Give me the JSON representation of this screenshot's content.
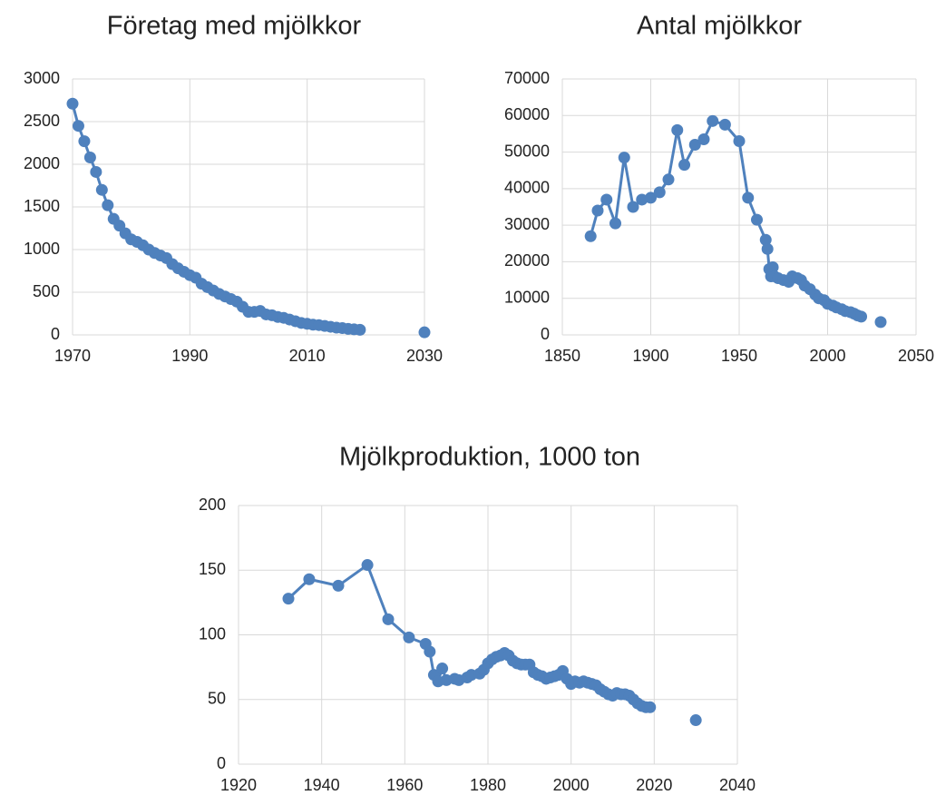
{
  "chart_data": [
    {
      "type": "line",
      "title": "Företag med mjölkkor",
      "xlim": [
        1970,
        2030
      ],
      "xticks": [
        1970,
        1990,
        2010,
        2030
      ],
      "ylim": [
        0,
        3000
      ],
      "yticks": [
        0,
        500,
        1000,
        1500,
        2000,
        2500,
        3000
      ],
      "grid": true,
      "series": [
        {
          "color": "#4f81bd",
          "x": [
            1970,
            1971,
            1972,
            1973,
            1974,
            1975,
            1976,
            1977,
            1978,
            1979,
            1980,
            1981,
            1982,
            1983,
            1984,
            1985,
            1986,
            1987,
            1988,
            1989,
            1990,
            1991,
            1992,
            1993,
            1994,
            1995,
            1996,
            1997,
            1998,
            1999,
            2000,
            2001,
            2002,
            2003,
            2004,
            2005,
            2006,
            2007,
            2008,
            2009,
            2010,
            2011,
            2012,
            2013,
            2014,
            2015,
            2016,
            2017,
            2018,
            2019
          ],
          "values": [
            2710,
            2450,
            2270,
            2080,
            1910,
            1700,
            1520,
            1360,
            1280,
            1190,
            1120,
            1090,
            1050,
            1000,
            960,
            930,
            900,
            830,
            780,
            740,
            700,
            670,
            600,
            560,
            520,
            480,
            450,
            420,
            390,
            330,
            270,
            270,
            280,
            240,
            230,
            210,
            200,
            180,
            160,
            140,
            130,
            120,
            115,
            105,
            95,
            85,
            80,
            70,
            65,
            60
          ]
        },
        {
          "color": "#4f81bd",
          "x": [
            2030
          ],
          "values": [
            30
          ]
        }
      ]
    },
    {
      "type": "line",
      "title": "Antal mjölkkor",
      "xlim": [
        1850,
        2050
      ],
      "xticks": [
        1850,
        1900,
        1950,
        2000,
        2050
      ],
      "ylim": [
        0,
        70000
      ],
      "yticks": [
        0,
        10000,
        20000,
        30000,
        40000,
        50000,
        60000,
        70000
      ],
      "grid": true,
      "series": [
        {
          "color": "#4f81bd",
          "x": [
            1866,
            1870,
            1875,
            1880,
            1885,
            1890,
            1895,
            1900,
            1905,
            1910,
            1915,
            1919,
            1925,
            1930,
            1935,
            1942,
            1950,
            1955,
            1960,
            1965,
            1966,
            1967,
            1968,
            1969,
            1970,
            1972,
            1975,
            1978,
            1980,
            1983,
            1985,
            1987,
            1990,
            1993,
            1995,
            1998,
            2000,
            2003,
            2005,
            2008,
            2010,
            2013,
            2015,
            2017,
            2019
          ],
          "values": [
            27000,
            34000,
            37000,
            30500,
            48500,
            35000,
            37000,
            37500,
            39000,
            42500,
            56000,
            46500,
            52000,
            53500,
            58500,
            57500,
            53000,
            37500,
            31500,
            26000,
            23500,
            18000,
            16000,
            18500,
            16000,
            15500,
            15000,
            14500,
            16000,
            15500,
            15000,
            13500,
            12500,
            11000,
            10000,
            9500,
            8500,
            8000,
            7500,
            7000,
            6500,
            6200,
            5800,
            5300,
            5000
          ]
        },
        {
          "color": "#4f81bd",
          "x": [
            2030
          ],
          "values": [
            3500
          ]
        }
      ]
    },
    {
      "type": "line",
      "title": "Mjölkproduktion, 1000 ton",
      "xlim": [
        1920,
        2040
      ],
      "xticks": [
        1920,
        1940,
        1960,
        1980,
        2000,
        2020,
        2040
      ],
      "ylim": [
        0,
        200
      ],
      "yticks": [
        0,
        50,
        100,
        150,
        200
      ],
      "grid": true,
      "series": [
        {
          "color": "#4f81bd",
          "x": [
            1932,
            1937,
            1944,
            1951,
            1956,
            1961,
            1965,
            1966,
            1967,
            1968,
            1969,
            1970,
            1972,
            1973,
            1975,
            1976,
            1978,
            1979,
            1980,
            1981,
            1982,
            1983,
            1984,
            1985,
            1986,
            1987,
            1988,
            1989,
            1990,
            1991,
            1992,
            1993,
            1994,
            1995,
            1996,
            1997,
            1998,
            1999,
            2000,
            2001,
            2002,
            2003,
            2004,
            2005,
            2006,
            2007,
            2008,
            2009,
            2010,
            2011,
            2012,
            2013,
            2014,
            2015,
            2016,
            2017,
            2018,
            2019
          ],
          "values": [
            128,
            143,
            138,
            154,
            112,
            98,
            93,
            87,
            69,
            64,
            74,
            65,
            66,
            65,
            67,
            69,
            70,
            73,
            78,
            81,
            83,
            84,
            86,
            84,
            80,
            78,
            77,
            77,
            77,
            71,
            69,
            68,
            66,
            67,
            68,
            69,
            72,
            66,
            62,
            64,
            63,
            64,
            63,
            62,
            61,
            58,
            56,
            54,
            53,
            55,
            54,
            54,
            53,
            50,
            47,
            45,
            44,
            44
          ]
        },
        {
          "color": "#4f81bd",
          "x": [
            2030
          ],
          "values": [
            34
          ]
        }
      ]
    }
  ]
}
